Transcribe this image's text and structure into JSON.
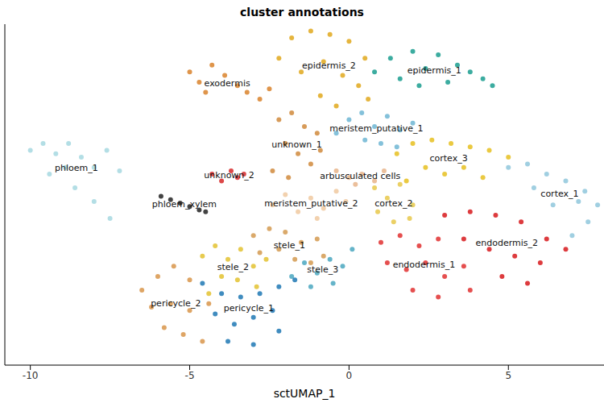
{
  "chart_data": {
    "type": "scatter",
    "title": "cluster annotations",
    "x_label": "sctUMAP_1",
    "xlim": [
      -10.8,
      8
    ],
    "xticks": [
      -10,
      -5,
      0,
      5
    ],
    "ylim": [
      -6,
      4
    ],
    "tick_labels": "x",
    "grid": false,
    "series": [
      {
        "name": "epidermis_1",
        "color": "#1a9e8f",
        "x": [
          0.8,
          1.3,
          1.6,
          2.0,
          2.4,
          2.8,
          3.1,
          3.4,
          3.8,
          4.2,
          4.5,
          2.2
        ],
        "y": [
          2.6,
          3.0,
          2.4,
          3.2,
          2.7,
          3.1,
          2.3,
          2.8,
          2.6,
          2.4,
          2.2,
          2.2
        ]
      },
      {
        "name": "epidermis_2",
        "color": "#e0a81c",
        "x": [
          -2.2,
          -1.8,
          -1.2,
          -0.6,
          0,
          0.5,
          -1.5,
          -0.8,
          -0.2,
          0.3,
          -0.9,
          -0.4,
          0.6
        ],
        "y": [
          3.0,
          3.6,
          3.8,
          3.7,
          3.5,
          3.0,
          2.6,
          2.9,
          2.5,
          2.2,
          1.9,
          1.6,
          1.8
        ]
      },
      {
        "name": "exodermis",
        "color": "#d9822b",
        "x": [
          -5.0,
          -4.7,
          -4.3,
          -3.9,
          -3.5,
          -3.2,
          -2.8,
          -2.5,
          -4.5
        ],
        "y": [
          2.6,
          2.3,
          2.8,
          2.5,
          2.2,
          2.0,
          1.8,
          2.1,
          2.0
        ]
      },
      {
        "name": "unknown_1",
        "color": "#d08a3c",
        "x": [
          -2.2,
          -1.8,
          -1.4,
          -1.0,
          -2.0,
          -1.6,
          -1.2,
          -2.4,
          -1.9,
          -0.9
        ],
        "y": [
          1.2,
          1.4,
          1.0,
          0.8,
          0.5,
          0.2,
          -0.1,
          -0.3,
          -0.5,
          0.3
        ]
      },
      {
        "name": "meristem_putative_1",
        "color": "#6fb6d4",
        "x": [
          0.0,
          0.4,
          0.8,
          1.2,
          1.6,
          2.0,
          0.5,
          1.0,
          1.5,
          -0.4
        ],
        "y": [
          1.2,
          1.4,
          1.0,
          1.3,
          0.9,
          1.1,
          0.6,
          0.5,
          0.4,
          0.8
        ]
      },
      {
        "name": "arbusculated cells",
        "color": "#e8b48a",
        "x": [
          -0.4,
          0,
          0.4,
          0.8,
          1.1,
          0.2
        ],
        "y": [
          -0.3,
          -0.5,
          -0.4,
          -0.6,
          -0.3,
          -0.7
        ]
      },
      {
        "name": "meristem_putative_2",
        "color": "#f0c9a0",
        "x": [
          -2.4,
          -2.0,
          -1.6,
          -1.2,
          -0.8,
          -0.4,
          -0.1,
          -1.0
        ],
        "y": [
          -1.3,
          -1.0,
          -1.5,
          -1.1,
          -1.4,
          -0.9,
          -1.2,
          -1.7
        ]
      },
      {
        "name": "unknown_2",
        "color": "#d62728",
        "x": [
          -4.3,
          -4.0,
          -3.7,
          -3.5,
          -3.3
        ],
        "y": [
          -0.4,
          -0.6,
          -0.3,
          -0.5,
          -0.4
        ]
      },
      {
        "name": "phloem_xylem",
        "color": "#222222",
        "x": [
          -5.9,
          -5.6,
          -5.3,
          -5.0,
          -4.7,
          -4.5
        ],
        "y": [
          -1.05,
          -1.15,
          -1.25,
          -1.35,
          -1.45,
          -1.5
        ]
      },
      {
        "name": "phloem_1",
        "color": "#a6d8e0",
        "x": [
          -10.0,
          -9.6,
          -9.2,
          -8.8,
          -8.4,
          -8.0,
          -7.6,
          -7.2,
          -9.4,
          -8.6,
          -8.0,
          -7.5,
          -8.9
        ],
        "y": [
          0.3,
          0.5,
          0.2,
          0.5,
          0.1,
          -0.2,
          0.3,
          -0.3,
          -0.4,
          -0.8,
          -1.2,
          -1.7,
          -0.2
        ]
      },
      {
        "name": "cortex_3",
        "color": "#e6c020",
        "x": [
          1.5,
          2.0,
          2.6,
          3.2,
          3.8,
          4.4,
          5.0,
          2.4,
          3.0,
          3.6,
          4.2,
          1.8
        ],
        "y": [
          0.2,
          0.5,
          0.6,
          0.5,
          0.4,
          0.3,
          0.1,
          -0.2,
          -0.4,
          -0.2,
          -0.5,
          -0.6
        ]
      },
      {
        "name": "cortex_2",
        "color": "#e8c84a",
        "x": [
          0.8,
          1.2,
          1.6,
          2.0,
          0.9,
          1.4,
          1.9
        ],
        "y": [
          -0.8,
          -1.1,
          -0.7,
          -1.3,
          -1.5,
          -1.8,
          -1.7
        ]
      },
      {
        "name": "cortex_1",
        "color": "#8fc7dc",
        "x": [
          5.0,
          5.6,
          6.2,
          6.8,
          7.4,
          7.8,
          7.5,
          7.0,
          6.4,
          5.8,
          7.2
        ],
        "y": [
          -0.2,
          -0.1,
          -0.4,
          -0.6,
          -0.9,
          -1.3,
          -1.8,
          -2.2,
          -1.3,
          -0.8,
          -1.2
        ]
      },
      {
        "name": "endodermis_2",
        "color": "#d7191c",
        "x": [
          3.0,
          3.8,
          4.6,
          5.4,
          6.2,
          6.8,
          3.6,
          4.4,
          5.2,
          6.0,
          4.8,
          5.6
        ],
        "y": [
          -1.6,
          -1.5,
          -1.6,
          -1.8,
          -2.3,
          -2.6,
          -2.3,
          -2.6,
          -2.8,
          -3.0,
          -3.4,
          -3.6
        ]
      },
      {
        "name": "endodermis_1",
        "color": "#e03030",
        "x": [
          1.0,
          1.6,
          2.2,
          2.8,
          1.2,
          1.8,
          2.4,
          3.0,
          3.6,
          2.0,
          2.8,
          3.8
        ],
        "y": [
          -2.4,
          -2.2,
          -2.5,
          -2.3,
          -3.0,
          -3.2,
          -3.0,
          -3.4,
          -3.1,
          -3.8,
          -4.0,
          -3.8
        ]
      },
      {
        "name": "stele_1",
        "color": "#d49a50",
        "x": [
          -3.0,
          -2.5,
          -2.0,
          -1.5,
          -1.0,
          -2.8,
          -2.2,
          -1.7,
          -1.2,
          -0.8
        ],
        "y": [
          -2.2,
          -2.0,
          -2.1,
          -2.4,
          -2.3,
          -2.7,
          -2.6,
          -2.9,
          -3.0,
          -2.8
        ]
      },
      {
        "name": "stele_2",
        "color": "#e3c230",
        "x": [
          -4.6,
          -4.2,
          -3.8,
          -3.4,
          -3.0,
          -2.6,
          -4.0,
          -3.5,
          -2.9,
          -4.4
        ],
        "y": [
          -2.8,
          -2.5,
          -2.9,
          -2.6,
          -3.1,
          -2.9,
          -3.4,
          -3.5,
          -3.7,
          -3.9
        ]
      },
      {
        "name": "stele_3",
        "color": "#4aa7c0",
        "x": [
          -1.8,
          -1.4,
          -1.0,
          -0.6,
          -0.2,
          0.1,
          -0.5,
          -1.2
        ],
        "y": [
          -3.4,
          -3.0,
          -3.3,
          -2.9,
          -3.1,
          -2.6,
          -3.6,
          -3.7
        ]
      },
      {
        "name": "pericycle_1",
        "color": "#1f78b4",
        "x": [
          -4.6,
          -4.0,
          -3.4,
          -2.8,
          -2.2,
          -1.7,
          -4.2,
          -3.6,
          -3.0,
          -2.4,
          -3.8,
          -3.0,
          -2.2
        ],
        "y": [
          -3.6,
          -3.9,
          -4.0,
          -3.9,
          -3.7,
          -3.5,
          -4.5,
          -4.8,
          -4.6,
          -4.4,
          -5.3,
          -5.4,
          -5.0
        ]
      },
      {
        "name": "pericycle_2",
        "color": "#d8954a",
        "x": [
          -6.5,
          -6.0,
          -5.5,
          -5.0,
          -6.2,
          -5.6,
          -5.0,
          -4.4,
          -5.8,
          -5.2,
          -4.6
        ],
        "y": [
          -3.8,
          -3.4,
          -3.1,
          -3.5,
          -4.3,
          -4.2,
          -4.4,
          -4.2,
          -4.9,
          -5.1,
          -5.3
        ]
      }
    ]
  }
}
